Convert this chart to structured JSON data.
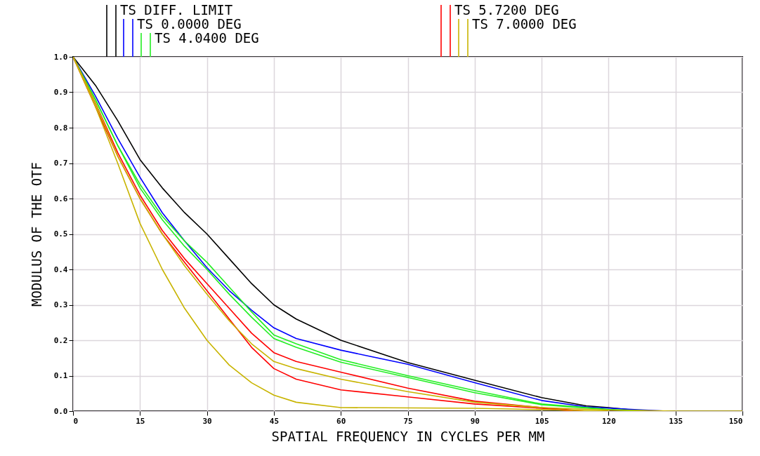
{
  "chart_data": {
    "type": "line",
    "xlabel": "SPATIAL FREQUENCY IN CYCLES PER MM",
    "ylabel": "MODULUS OF THE OTF",
    "xlim": [
      0,
      150
    ],
    "xticks": [
      0,
      15,
      30,
      45,
      60,
      75,
      90,
      105,
      120,
      135,
      150
    ],
    "ylim": [
      0,
      1
    ],
    "yticks": [
      {
        "value": 0,
        "label": "0.0"
      },
      {
        "value": 0.1,
        "label": "0.1"
      },
      {
        "value": 0.2,
        "label": "0.2"
      },
      {
        "value": 0.3,
        "label": "0.3"
      },
      {
        "value": 0.4,
        "label": "0.4"
      },
      {
        "value": 0.5,
        "label": "0.5"
      },
      {
        "value": 0.6,
        "label": "0.6"
      },
      {
        "value": 0.7,
        "label": "0.7"
      },
      {
        "value": 0.8,
        "label": "0.8"
      },
      {
        "value": 0.9,
        "label": "0.9"
      },
      {
        "value": 1,
        "label": "1.0"
      }
    ],
    "grid": true,
    "legend": "top",
    "line_style": "solid",
    "series": [
      {
        "name": "TS DIFF. LIMIT",
        "color": "#000000",
        "x": [
          0,
          5,
          10,
          15,
          20,
          25,
          30,
          35,
          40,
          45,
          50,
          60,
          75,
          90,
          105,
          115,
          120,
          128
        ],
        "values": [
          1,
          0.92,
          0.82,
          0.71,
          0.63,
          0.56,
          0.5,
          0.43,
          0.36,
          0.3,
          0.26,
          0.2,
          0.137,
          0.087,
          0.038,
          0.015,
          0.01,
          0
        ]
      },
      {
        "name": "TS 0.0000 DEG",
        "color": "#0000ff",
        "x": [
          0,
          5,
          10,
          15,
          20,
          25,
          30,
          35,
          40,
          45,
          50,
          60,
          75,
          90,
          105,
          115,
          125,
          133
        ],
        "values": [
          1,
          0.89,
          0.77,
          0.66,
          0.56,
          0.48,
          0.405,
          0.34,
          0.285,
          0.235,
          0.205,
          0.172,
          0.132,
          0.08,
          0.03,
          0.012,
          0.005,
          0
        ]
      },
      {
        "name": "TS 4.0400 DEG",
        "color": "#22ee22",
        "x": [
          0,
          5,
          10,
          15,
          20,
          25,
          30,
          35,
          40,
          45,
          50,
          60,
          75,
          90,
          105,
          120,
          130
        ],
        "values": [
          1,
          0.88,
          0.75,
          0.64,
          0.55,
          0.48,
          0.42,
          0.35,
          0.28,
          0.215,
          0.19,
          0.145,
          0.1,
          0.058,
          0.02,
          0.005,
          0
        ]
      },
      {
        "color": "#22ee22",
        "x": [
          0,
          5,
          10,
          15,
          20,
          25,
          30,
          35,
          40,
          45,
          50,
          60,
          75,
          90,
          105,
          120,
          127
        ],
        "values": [
          1,
          0.88,
          0.75,
          0.63,
          0.54,
          0.465,
          0.4,
          0.33,
          0.265,
          0.205,
          0.18,
          0.138,
          0.095,
          0.052,
          0.018,
          0.004,
          0
        ]
      },
      {
        "name": "TS 5.7200 DEG",
        "color": "#ff0000",
        "x": [
          0,
          5,
          10,
          15,
          20,
          25,
          30,
          35,
          40,
          45,
          50,
          60,
          75,
          90,
          105,
          115
        ],
        "values": [
          1,
          0.87,
          0.73,
          0.61,
          0.51,
          0.43,
          0.36,
          0.29,
          0.22,
          0.165,
          0.14,
          0.11,
          0.065,
          0.028,
          0.01,
          0
        ]
      },
      {
        "color": "#ff0000",
        "x": [
          0,
          5,
          10,
          15,
          20,
          25,
          30,
          35,
          40,
          45,
          50,
          60,
          75,
          90,
          105,
          112
        ],
        "values": [
          1,
          0.86,
          0.72,
          0.6,
          0.5,
          0.42,
          0.34,
          0.26,
          0.18,
          0.12,
          0.09,
          0.06,
          0.04,
          0.02,
          0.008,
          0
        ]
      },
      {
        "name": "TS 7.0000 DEG",
        "color": "#c8b400",
        "x": [
          0,
          5,
          10,
          15,
          20,
          25,
          30,
          35,
          40,
          45,
          50,
          60,
          75,
          90,
          105,
          120,
          135,
          150
        ],
        "values": [
          1,
          0.87,
          0.72,
          0.6,
          0.5,
          0.41,
          0.33,
          0.255,
          0.19,
          0.14,
          0.12,
          0.09,
          0.055,
          0.025,
          0.01,
          0.003,
          0,
          0
        ]
      },
      {
        "color": "#c8b400",
        "x": [
          0,
          5,
          10,
          15,
          20,
          25,
          30,
          35,
          40,
          45,
          50,
          60,
          90,
          110,
          120
        ],
        "values": [
          1,
          0.86,
          0.7,
          0.53,
          0.4,
          0.29,
          0.2,
          0.13,
          0.08,
          0.045,
          0.025,
          0.01,
          0.008,
          0.003,
          0
        ]
      }
    ]
  }
}
